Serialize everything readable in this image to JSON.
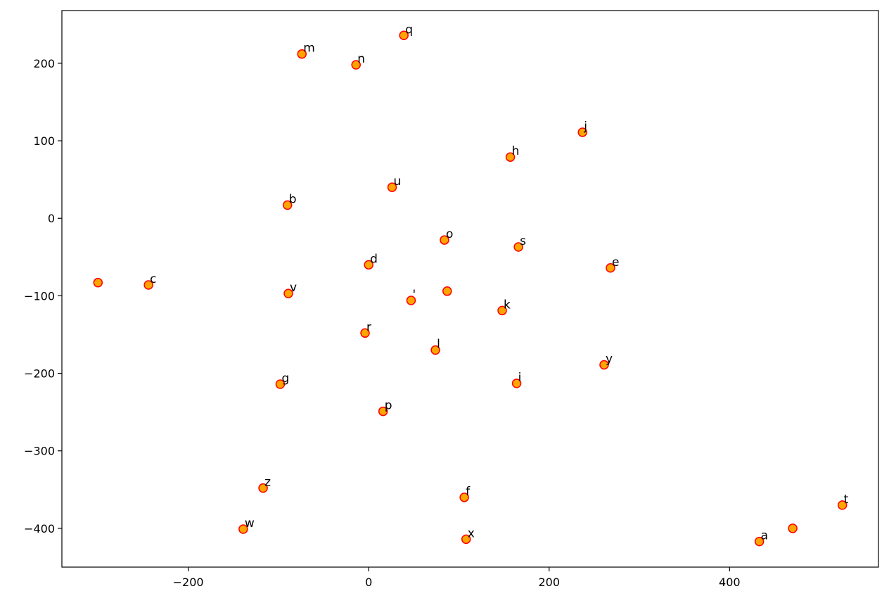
{
  "chart_data": {
    "type": "scatter",
    "title": "",
    "xlabel": "",
    "ylabel": "",
    "xlim": [
      -340,
      565
    ],
    "ylim": [
      -450,
      268
    ],
    "x_ticks": [
      -200,
      0,
      200,
      400
    ],
    "y_ticks": [
      200,
      100,
      0,
      -100,
      -200,
      -300,
      -400
    ],
    "x_tick_labels": [
      "−200",
      "0",
      "200",
      "400"
    ],
    "y_tick_labels": [
      "200",
      "100",
      "0",
      "−100",
      "−200",
      "−300",
      "−400"
    ],
    "grid": false,
    "marker": {
      "face_color": "#ffa500",
      "edge_color": "#ff0000"
    },
    "points": [
      {
        "label": "q",
        "x": 39,
        "y": 236
      },
      {
        "label": "m",
        "x": -74,
        "y": 212
      },
      {
        "label": "n",
        "x": -14,
        "y": 198
      },
      {
        "label": "j",
        "x": 237,
        "y": 111
      },
      {
        "label": "h",
        "x": 157,
        "y": 79
      },
      {
        "label": "u",
        "x": 26,
        "y": 40
      },
      {
        "label": "b",
        "x": -90,
        "y": 17
      },
      {
        "label": "o",
        "x": 84,
        "y": -28
      },
      {
        "label": "s",
        "x": 166,
        "y": -37
      },
      {
        "label": "d",
        "x": 0,
        "y": -60
      },
      {
        "label": "e",
        "x": 268,
        "y": -64
      },
      {
        "label": "",
        "x": -300,
        "y": -83
      },
      {
        "label": "c",
        "x": -244,
        "y": -86
      },
      {
        "label": "v",
        "x": -89,
        "y": -97
      },
      {
        "label": "",
        "x": 87,
        "y": -94
      },
      {
        "label": "'",
        "x": 47,
        "y": -106
      },
      {
        "label": "k",
        "x": 148,
        "y": -119
      },
      {
        "label": "r",
        "x": -4,
        "y": -148
      },
      {
        "label": "l",
        "x": 74,
        "y": -170
      },
      {
        "label": "y",
        "x": 261,
        "y": -189
      },
      {
        "label": "g",
        "x": -98,
        "y": -214
      },
      {
        "label": "i",
        "x": 164,
        "y": -213
      },
      {
        "label": "p",
        "x": 16,
        "y": -249
      },
      {
        "label": "z",
        "x": -117,
        "y": -348
      },
      {
        "label": "f",
        "x": 106,
        "y": -360
      },
      {
        "label": "t",
        "x": 525,
        "y": -370
      },
      {
        "label": "w",
        "x": -139,
        "y": -401
      },
      {
        "label": "",
        "x": 470,
        "y": -400
      },
      {
        "label": "x",
        "x": 108,
        "y": -414
      },
      {
        "label": "a",
        "x": 433,
        "y": -417
      }
    ]
  }
}
